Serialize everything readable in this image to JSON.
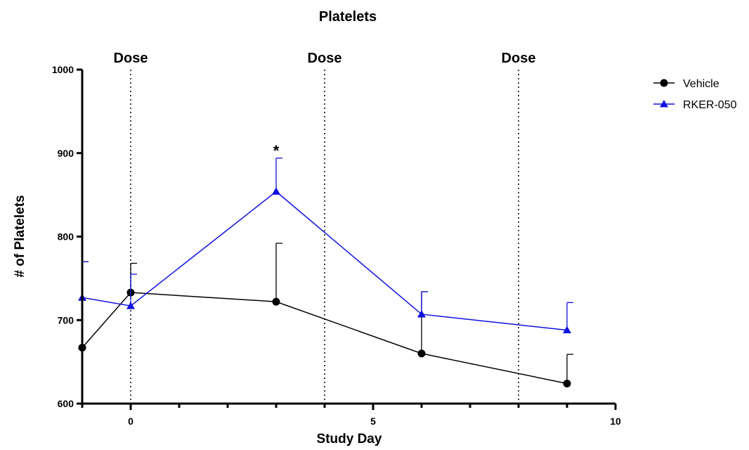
{
  "chart_data": {
    "type": "line",
    "title": "Platelets",
    "xlabel": "Study Day",
    "ylabel": "# of Platelets",
    "xlim": [
      -1,
      10
    ],
    "ylim": [
      600,
      1000
    ],
    "x_ticks": [
      0,
      5,
      10
    ],
    "y_ticks": [
      600,
      700,
      800,
      900,
      1000
    ],
    "grid": false,
    "legend_position": "top-right",
    "series": [
      {
        "name": "Vehicle",
        "color": "#000000",
        "marker": "circle",
        "x": [
          -1,
          0,
          3,
          6,
          9
        ],
        "y": [
          667,
          733,
          722,
          660,
          624
        ],
        "error_upper": [
          770,
          768,
          792,
          734,
          659
        ]
      },
      {
        "name": "RKER-050",
        "color": "#1010e0",
        "marker": "triangle",
        "x": [
          -1,
          0,
          3,
          6,
          9
        ],
        "y": [
          727,
          717,
          854,
          707,
          688
        ],
        "error_upper": [
          770,
          755,
          894,
          734,
          721
        ]
      }
    ],
    "annotations": [
      {
        "text": "Dose",
        "x": 0
      },
      {
        "text": "Dose",
        "x": 4
      },
      {
        "text": "Dose",
        "x": 8
      },
      {
        "text": "*",
        "x": 3,
        "y": 900
      }
    ],
    "vlines": [
      0,
      4,
      8
    ]
  }
}
